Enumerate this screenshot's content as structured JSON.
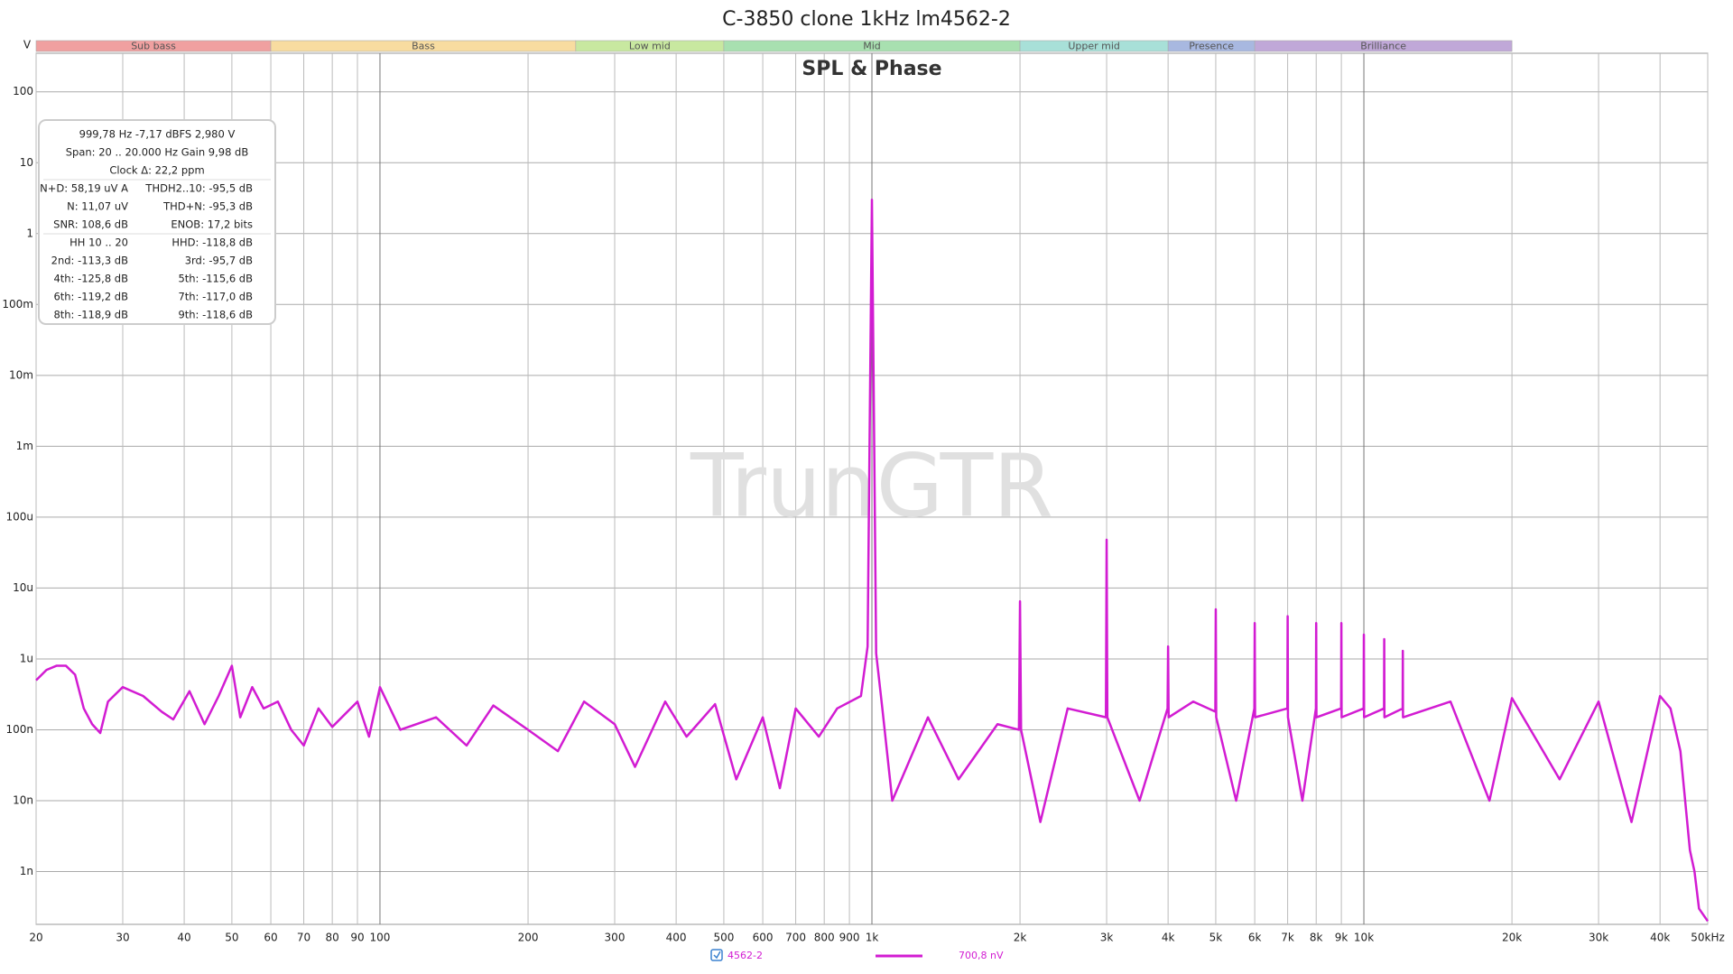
{
  "chart_data": {
    "type": "line",
    "title": "C-3850 clone 1kHz lm4562-2",
    "subtitle": "SPL & Phase",
    "y_unit": "V",
    "watermark": "TrunGTR",
    "log_x": true,
    "log_y": true,
    "grid": true,
    "xlim": [
      20,
      50000
    ],
    "ylim": [
      1.8e-10,
      350
    ],
    "xticks": [
      20,
      30,
      40,
      50,
      60,
      70,
      80,
      90,
      100,
      200,
      300,
      400,
      500,
      600,
      700,
      800,
      900,
      {
        "value": 1000,
        "label": "1k"
      },
      {
        "value": 2000,
        "label": "2k"
      },
      {
        "value": 3000,
        "label": "3k"
      },
      {
        "value": 4000,
        "label": "4k"
      },
      {
        "value": 5000,
        "label": "5k"
      },
      {
        "value": 6000,
        "label": "6k"
      },
      {
        "value": 7000,
        "label": "7k"
      },
      {
        "value": 8000,
        "label": "8k"
      },
      {
        "value": 9000,
        "label": "9k"
      },
      {
        "value": 10000,
        "label": "10k"
      },
      {
        "value": 20000,
        "label": "20k"
      },
      {
        "value": 30000,
        "label": "30k"
      },
      {
        "value": 40000,
        "label": "40k"
      },
      {
        "value": 50000,
        "label": "50kHz"
      }
    ],
    "yticks": [
      {
        "value": 1e-09,
        "label": "1n"
      },
      {
        "value": 1e-08,
        "label": "10n"
      },
      {
        "value": 1e-07,
        "label": "100n"
      },
      {
        "value": 1e-06,
        "label": "1u"
      },
      {
        "value": 1e-05,
        "label": "10u"
      },
      {
        "value": 0.0001,
        "label": "100u"
      },
      {
        "value": 0.001,
        "label": "1m"
      },
      {
        "value": 0.01,
        "label": "10m"
      },
      {
        "value": 0.1,
        "label": "100m"
      },
      1,
      10,
      100
    ],
    "bands": [
      {
        "name": "Sub bass",
        "start": 20,
        "end": 60,
        "color": "#f0a0a0"
      },
      {
        "name": "Bass",
        "start": 60,
        "end": 250,
        "color": "#f8dca0"
      },
      {
        "name": "Low mid",
        "start": 250,
        "end": 500,
        "color": "#c8e8a0"
      },
      {
        "name": "Mid",
        "start": 500,
        "end": 2000,
        "color": "#a8e0b0"
      },
      {
        "name": "Upper mid",
        "start": 2000,
        "end": 4000,
        "color": "#a8e0d8"
      },
      {
        "name": "Presence",
        "start": 4000,
        "end": 6000,
        "color": "#a8b8e0"
      },
      {
        "name": "Brilliance",
        "start": 6000,
        "end": 20000,
        "color": "#c0a8d8"
      }
    ],
    "info": [
      [
        "999,78 Hz  -7,17 dBFS  2,980 V"
      ],
      [
        "Span: 20 .. 20.000 Hz   Gain 9,98 dB"
      ],
      [
        "Clock Δ: 22,2 ppm"
      ],
      [
        "N+D: 58,19 uV A",
        "THDH2..10: -95,5 dB"
      ],
      [
        "N: 11,07 uV",
        "THD+N: -95,3 dB"
      ],
      [
        "SNR: 108,6 dB",
        "ENOB: 17,2 bits"
      ],
      [
        "HH 10 .. 20",
        "HHD: -118,8 dB"
      ],
      [
        "2nd: -113,3 dB",
        "3rd: -95,7 dB"
      ],
      [
        "4th: -125,8 dB",
        "5th: -115,6 dB"
      ],
      [
        "6th: -119,2 dB",
        "7th: -117,0 dB"
      ],
      [
        "8th: -118,9 dB",
        "9th: -118,6 dB"
      ]
    ],
    "legend_value": "700,8 nV",
    "x": [
      20,
      21,
      22,
      23,
      24,
      25,
      26,
      27,
      28,
      30,
      33,
      36,
      38,
      41,
      44,
      47,
      50,
      52,
      55,
      58,
      62,
      66,
      70,
      75,
      80,
      90,
      95,
      100,
      110,
      130,
      150,
      170,
      200,
      230,
      260,
      300,
      330,
      380,
      420,
      480,
      530,
      600,
      650,
      700,
      780,
      850,
      950,
      980,
      1000,
      1020,
      1050,
      1100,
      1300,
      1500,
      1800,
      1990,
      2000,
      2010,
      2200,
      2500,
      2990,
      3000,
      3010,
      3500,
      3990,
      4000,
      4010,
      4500,
      4990,
      5000,
      5010,
      5500,
      5990,
      6000,
      6010,
      6990,
      7000,
      7010,
      7500,
      7990,
      8000,
      8010,
      8990,
      9000,
      9010,
      9990,
      10000,
      10010,
      10990,
      11000,
      11010,
      11990,
      12000,
      12010,
      15000,
      18000,
      20000,
      25000,
      30000,
      35000,
      40000,
      42000,
      44000,
      46000,
      47000,
      48000,
      50000
    ],
    "series": [
      {
        "name": "4562-2",
        "color": "#d21cd2",
        "values": [
          5e-07,
          7e-07,
          8e-07,
          8e-07,
          6e-07,
          2e-07,
          1.2e-07,
          9e-08,
          2.5e-07,
          4e-07,
          3e-07,
          1.8e-07,
          1.4e-07,
          3.5e-07,
          1.2e-07,
          3e-07,
          8e-07,
          1.5e-07,
          4e-07,
          2e-07,
          2.5e-07,
          1e-07,
          6e-08,
          2e-07,
          1.1e-07,
          2.5e-07,
          8e-08,
          4e-07,
          1e-07,
          1.5e-07,
          6e-08,
          2.2e-07,
          1e-07,
          5e-08,
          2.5e-07,
          1.2e-07,
          3e-08,
          2.5e-07,
          8e-08,
          2.3e-07,
          2e-08,
          1.5e-07,
          1.5e-08,
          2e-07,
          8e-08,
          2e-07,
          3e-07,
          1.5e-06,
          3.0,
          1.2e-06,
          2e-07,
          1e-08,
          1.5e-07,
          2e-08,
          1.2e-07,
          1e-07,
          6.5e-06,
          1e-07,
          5e-09,
          2e-07,
          1.5e-07,
          4.8e-05,
          1.5e-07,
          1e-08,
          2e-07,
          1.5e-06,
          1.5e-07,
          2.5e-07,
          1.8e-07,
          5e-06,
          1.5e-07,
          1e-08,
          2e-07,
          3.2e-06,
          1.5e-07,
          2e-07,
          4e-06,
          1.5e-07,
          1e-08,
          2e-07,
          3.2e-06,
          1.5e-07,
          2e-07,
          3.2e-06,
          1.5e-07,
          2e-07,
          2.2e-06,
          1.5e-07,
          2e-07,
          1.9e-06,
          1.5e-07,
          2e-07,
          1.3e-06,
          1.5e-07,
          2.5e-07,
          1e-08,
          2.8e-07,
          2e-08,
          2.5e-07,
          5e-09,
          3e-07,
          2e-07,
          5e-08,
          2e-09,
          1e-09,
          3e-10,
          2e-10
        ]
      }
    ]
  }
}
